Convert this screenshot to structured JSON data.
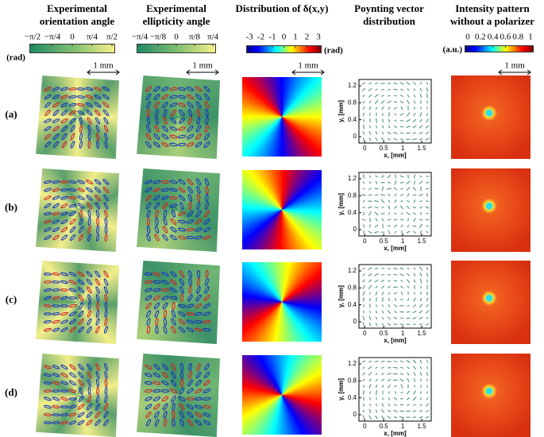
{
  "columns": [
    {
      "title": [
        "Experimental",
        "orientation angle"
      ],
      "colorbar": {
        "ticks": [
          "−π/2",
          "−π/4",
          "0",
          "π/4",
          "π/2"
        ],
        "unit": "(rad)"
      },
      "scale_bar": "1 mm"
    },
    {
      "title": [
        "Experimental",
        "ellipticity angle"
      ],
      "colorbar": {
        "ticks": [
          "−π/4",
          "−π/8",
          "0",
          "π/8",
          "π/4"
        ]
      },
      "scale_bar": "1 mm"
    },
    {
      "title": [
        "Distribution of δ(x,y)"
      ],
      "colorbar": {
        "ticks": [
          -3,
          -2,
          -1,
          0,
          1,
          2,
          3
        ],
        "unit": "(rad)"
      },
      "scale_bar": "1 mm"
    },
    {
      "title": [
        "Poynting vector",
        "distribution"
      ],
      "x_label": "x, [mm]",
      "y_label": "y, [mm]",
      "xlim": [
        -0.15,
        1.75
      ],
      "ylim": [
        -0.15,
        1.35
      ],
      "xticks": [
        0,
        0.5,
        1,
        1.5
      ],
      "yticks": [
        0,
        0.4,
        0.8,
        1.2
      ]
    },
    {
      "title": [
        "Intensity pattern",
        "without a polarizer"
      ],
      "colorbar": {
        "ticks": [
          0,
          0.2,
          0.4,
          0.6,
          0.8,
          1
        ],
        "unit": "(a.u.)"
      },
      "scale_bar": "1 mm"
    }
  ],
  "rows": [
    "(a)",
    "(b)",
    "(c)",
    "(d)"
  ]
}
